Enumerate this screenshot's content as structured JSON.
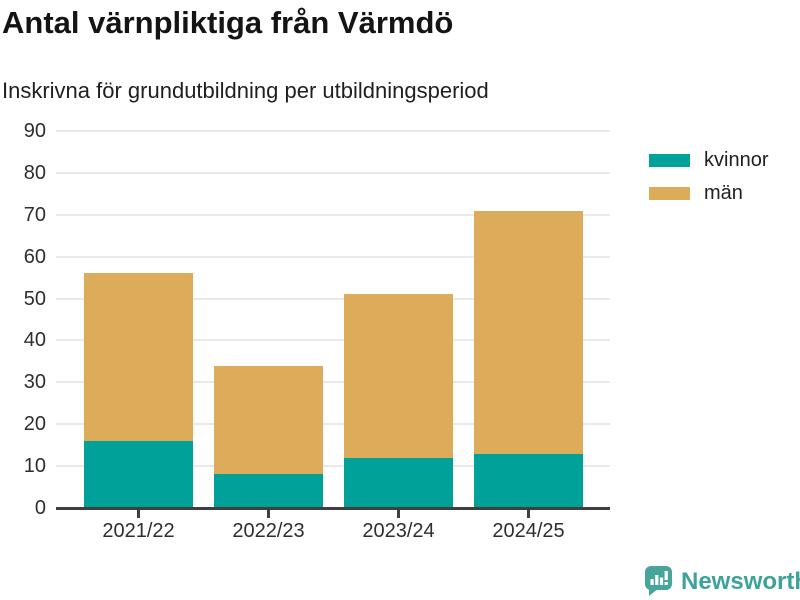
{
  "header": {
    "title": "Antal värnpliktiga från Värmdö",
    "subtitle": "Inskrivna för grundutbildning per utbildningsperiod"
  },
  "chart_data": {
    "type": "bar",
    "stacked": true,
    "title": "Antal värnpliktiga från Värmdö",
    "subtitle": "Inskrivna för grundutbildning per utbildningsperiod",
    "categories": [
      "2021/22",
      "2022/23",
      "2023/24",
      "2024/25"
    ],
    "series": [
      {
        "name": "kvinnor",
        "color": "#00A199",
        "values": [
          16,
          8,
          12,
          13
        ]
      },
      {
        "name": "män",
        "color": "#DDAC5A",
        "values": [
          40,
          26,
          39,
          58
        ]
      }
    ],
    "stacked_totals": [
      56,
      34,
      51,
      71
    ],
    "xlabel": "",
    "ylabel": "",
    "ylim": [
      0,
      90
    ],
    "ytick_step": 10,
    "grid": true,
    "legend_position": "right"
  },
  "footer": {
    "brand": "Newsworthy",
    "brand_color": "#3DA29B",
    "icon_color": "#47A59C"
  }
}
